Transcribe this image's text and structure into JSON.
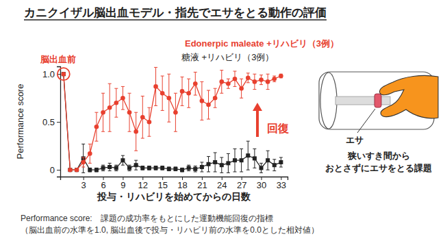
{
  "chart_data": {
    "type": "line",
    "title": "カニクイザル脳出血モデル・指先でエサをとる動作の評価",
    "x_label": "投与・リハビリを始めてからの日数",
    "y_label": "Performance score",
    "x": [
      0,
      1,
      2,
      3,
      4,
      5,
      6,
      7,
      8,
      9,
      10,
      11,
      12,
      13,
      14,
      15,
      16,
      17,
      18,
      19,
      20,
      21,
      22,
      23,
      24,
      25,
      26,
      27,
      28,
      29,
      30,
      31,
      32,
      33
    ],
    "xlim": [
      -0.5,
      34
    ],
    "xticks": [
      3,
      6,
      9,
      12,
      15,
      18,
      21,
      24,
      27,
      30,
      33
    ],
    "ylim": [
      -0.07,
      1.08
    ],
    "yticks": [
      0,
      0.5,
      {
        "value": 1,
        "label": "1.0"
      }
    ],
    "grid": false,
    "legend": "top",
    "series": [
      {
        "name": "糖液 +リハビリ（3例）",
        "color": "#222222",
        "marker": "square",
        "line_style": "solid",
        "values": [
          1.0,
          0,
          0,
          0.12,
          0,
          0,
          0.02,
          0.03,
          0.02,
          0.1,
          0.02,
          0.05,
          0.02,
          0.02,
          0.02,
          0.02,
          0.01,
          0.01,
          0,
          0.02,
          0.01,
          0.03,
          0.06,
          0.08,
          0.05,
          0.07,
          0.1,
          0.1,
          0.15,
          0.12,
          0.02,
          0.1,
          0.05,
          0.08
        ],
        "errors": [
          0,
          0,
          0,
          0.15,
          0.02,
          0.02,
          0.03,
          0.04,
          0.03,
          0.05,
          0.03,
          0.05,
          0.02,
          0.02,
          0.02,
          0.02,
          0.02,
          0.02,
          0.02,
          0.03,
          0.03,
          0.05,
          0.08,
          0.1,
          0.08,
          0.1,
          0.12,
          0.12,
          0.15,
          0.1,
          0.05,
          0.1,
          0.06,
          0.05
        ]
      },
      {
        "name": "Edonerpic maleate +リハビリ（3例）",
        "color": "#e8402f",
        "marker": "circle",
        "line_style": "solid",
        "values": [
          1.0,
          0,
          0,
          0.08,
          0.17,
          0.45,
          0.6,
          0.65,
          0.7,
          0.75,
          0.6,
          0.4,
          0.55,
          0.5,
          0.87,
          0.8,
          0.75,
          0.6,
          0.82,
          0.8,
          0.9,
          0.72,
          0.68,
          0.75,
          0.92,
          0.9,
          0.95,
          0.85,
          0.96,
          0.92,
          0.94,
          0.92,
          0.95,
          0.98
        ],
        "errors": [
          0,
          0,
          0,
          0.05,
          0.1,
          0.15,
          0.2,
          0.25,
          0.15,
          0.12,
          0.2,
          0.2,
          0.22,
          0.15,
          0.2,
          0.18,
          0.25,
          0.2,
          0.15,
          0.15,
          0.12,
          0.2,
          0.15,
          0.1,
          0.12,
          0.05,
          0.08,
          0.1,
          0.05,
          0.08,
          0.05,
          0.08,
          0.03,
          0.02
        ]
      }
    ],
    "annotations": [
      "脳出血前",
      "回復",
      "エサ",
      "狭いすき間から",
      "おとさずにエサをとる課題"
    ],
    "footnotes": [
      "Performance score:　課題の成功率をもとにした運動機能回復の指標",
      "（脳出血前の水準を1.0, 脳出血後で投与・リハビリ前の水準を0.0とした相対値）"
    ]
  }
}
